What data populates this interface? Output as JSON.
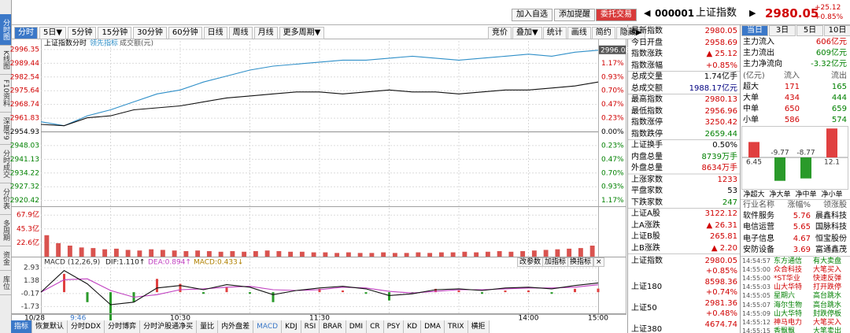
{
  "sidebar": [
    "分时图",
    "K线图",
    "F10资料",
    "深度F9",
    "分时成交",
    "分价表",
    "多周期",
    "资金",
    "库位"
  ],
  "header": {
    "buttons": [
      "加入自选",
      "添加提醒",
      "委托交易"
    ],
    "code": "000001",
    "name": "上证指数",
    "price": "2980.05",
    "change": "+25.12",
    "pct": "+0.85%"
  },
  "toolbar": {
    "periods": [
      "分时",
      "5日▼",
      "5分钟",
      "15分钟",
      "30分钟",
      "60分钟",
      "日线",
      "周线",
      "月线",
      "更多周期▼"
    ],
    "tools": [
      "竞价",
      "叠加▼",
      "统计",
      "画线",
      "简约",
      "隐藏▶"
    ]
  },
  "intraday": {
    "legend": [
      "上证指数",
      "分时",
      "领先指标",
      "成交额(元)"
    ],
    "last_label": "2996.08",
    "date": "10/28",
    "xlim": [
      0,
      240
    ],
    "xticks": [
      {
        "value": 16,
        "label": "9:46"
      },
      {
        "value": 60,
        "label": "10:30"
      },
      {
        "value": 120,
        "label": "11:30"
      },
      {
        "value": 210,
        "label": "14:00"
      },
      {
        "value": 240,
        "label": "15:00"
      }
    ],
    "ylim": [
      2917.5,
      2997.5
    ],
    "yticks": [
      2996.35,
      2989.44,
      2982.54,
      2975.64,
      2968.74,
      2961.83,
      2954.93,
      2948.03,
      2941.13,
      2934.22,
      2927.32,
      2920.42
    ],
    "pct_labels": [
      "1.40%",
      "1.17%",
      "0.93%",
      "0.70%",
      "0.47%",
      "0.23%",
      "0.00%",
      "0.23%",
      "0.47%",
      "0.70%",
      "0.93%",
      "1.17%"
    ],
    "x": [
      0,
      10,
      20,
      30,
      40,
      50,
      60,
      70,
      80,
      90,
      100,
      110,
      120,
      130,
      140,
      150,
      160,
      170,
      180,
      190,
      200,
      210,
      220,
      230,
      240
    ],
    "index_color": "#111111",
    "index_values": [
      2958.7,
      2958,
      2962,
      2963,
      2966,
      2967,
      2968,
      2970,
      2972,
      2973,
      2974,
      2975,
      2975,
      2974,
      2975,
      2976,
      2975,
      2975,
      2974,
      2975,
      2976,
      2976,
      2977,
      2978,
      2980
    ],
    "lead_color": "#2f8fc8",
    "lead_values": [
      2960,
      2958,
      2963,
      2966,
      2970,
      2974,
      2976,
      2980,
      2983,
      2986,
      2988,
      2989,
      2990,
      2991,
      2991,
      2992,
      2993,
      2992,
      2991,
      2992,
      2993,
      2994,
      2993,
      2995,
      2996
    ],
    "volume": {
      "color": "#d9534f",
      "ylim": [
        0,
        72
      ],
      "yticks": [
        {
          "value": 67.9,
          "label": "67.9亿"
        },
        {
          "value": 45.3,
          "label": "45.3亿"
        },
        {
          "value": 22.6,
          "label": "22.6亿"
        }
      ],
      "values": [
        35,
        22,
        18,
        15,
        14,
        12,
        13,
        11,
        10,
        12,
        11,
        10,
        9,
        10,
        9,
        8,
        9,
        8,
        9,
        10,
        9,
        8,
        8,
        7,
        7,
        6,
        7,
        6,
        6,
        7,
        6,
        6,
        7,
        6,
        7,
        7,
        8,
        7,
        8,
        9,
        8,
        9,
        10,
        11,
        12,
        13,
        14,
        18
      ]
    },
    "macd": {
      "title": "MACD (12,26,9)",
      "dif_label": "DIF:1.110↑",
      "dea_label": "DEA:0.894↑",
      "macd_label": "MACD:0.433↓",
      "buttons": [
        "改参数",
        "加指标",
        "换指标",
        "×"
      ],
      "ylim": [
        -2.45,
        3.8
      ],
      "yticks": [
        2.93,
        1.38,
        -0.17,
        -1.73
      ],
      "dif_color": "#111111",
      "dea_color": "#c03fc0",
      "up_color": "#e04040",
      "down_color": "#2a9a2a",
      "dif": [
        0,
        2.6,
        1.0,
        -1.5,
        -1.2,
        0.5,
        0.8,
        0.3,
        0.9,
        0.6,
        -0.3,
        0.2,
        0.5,
        0.7,
        0.4,
        -0.4,
        -0.2,
        0.3,
        0.4,
        0.2,
        0.5,
        0.6,
        0.4,
        0.8,
        1.11
      ],
      "dea": [
        0,
        1.5,
        1.6,
        0.2,
        -0.6,
        -0.3,
        0.3,
        0.4,
        0.6,
        0.7,
        0.3,
        0.2,
        0.3,
        0.6,
        0.5,
        0.1,
        -0.1,
        0.1,
        0.3,
        0.3,
        0.4,
        0.5,
        0.5,
        0.6,
        0.89
      ],
      "hist": [
        0,
        2.2,
        -1.2,
        -3.4,
        -1.2,
        1.6,
        1.0,
        -0.2,
        0.6,
        -0.2,
        -1.2,
        0,
        0.4,
        0.2,
        -0.2,
        -1.0,
        -0.2,
        0.4,
        0.2,
        -0.2,
        0.2,
        0.2,
        -0.2,
        0.4,
        0.43
      ]
    }
  },
  "bottom_tabs": [
    "指标",
    "恢复默认",
    "分时DDX",
    "分时博弈",
    "分时沪股通净买",
    "量比",
    "内外盘差",
    "MACD",
    "KDJ",
    "RSI",
    "BRAR",
    "DMI",
    "CR",
    "PSY",
    "KD",
    "DMA",
    "TRIX",
    "横拒"
  ],
  "quote": [
    [
      {
        "label": "最新指数",
        "value": "2980.05",
        "color": "#d00000"
      },
      {
        "label": "今日开盘",
        "value": "2958.69",
        "color": "#d00000"
      },
      {
        "label": "指数涨跌",
        "value": "▲ 25.12",
        "color": "#d00000"
      },
      {
        "label": "指数涨幅",
        "value": "+0.85%",
        "color": "#d00000"
      }
    ],
    [
      {
        "label": "总成交量",
        "value": "1.74亿手",
        "color": "#000000"
      },
      {
        "label": "总成交额",
        "value": "1988.17亿元",
        "color": "#000080"
      }
    ],
    [
      {
        "label": "最高指数",
        "value": "2980.13",
        "color": "#d00000"
      },
      {
        "label": "最低指数",
        "value": "2956.96",
        "color": "#d00000"
      },
      {
        "label": "指数涨停",
        "value": "3250.42",
        "color": "#d00000"
      },
      {
        "label": "指数跌停",
        "value": "2659.44",
        "color": "#008000"
      }
    ],
    [
      {
        "label": "上证换手",
        "value": "0.50%",
        "color": "#000000"
      },
      {
        "label": "内盘总量",
        "value": "8739万手",
        "color": "#008000"
      },
      {
        "label": "外盘总量",
        "value": "8634万手",
        "color": "#d00000"
      }
    ],
    [
      {
        "label": "上涨家数",
        "value": "1233",
        "color": "#d00000"
      },
      {
        "label": "平盘家数",
        "value": "53",
        "color": "#000000"
      },
      {
        "label": "下跌家数",
        "value": "247",
        "color": "#008000"
      }
    ],
    [
      {
        "label": "上证A股",
        "value": "3122.12",
        "color": "#d00000"
      },
      {
        "label": "上A涨跌",
        "value": "▲ 26.31",
        "color": "#d00000"
      },
      {
        "label": "上证B股",
        "value": "265.81",
        "color": "#d00000"
      },
      {
        "label": "上B涨跌",
        "value": "▲ 2.20",
        "color": "#d00000"
      }
    ]
  ],
  "indices": [
    {
      "name": "上证指数",
      "value": "2980.05",
      "pct": "+0.85%"
    },
    {
      "name": "上证180",
      "value": "8598.36",
      "pct": "+0.74%"
    },
    {
      "name": "上证50",
      "value": "2981.36",
      "pct": "+0.48%"
    },
    {
      "name": "上证380",
      "value": "4674.74"
    }
  ],
  "flow": {
    "tabs": [
      "当日",
      "3日",
      "5日",
      "10日"
    ],
    "summary": [
      {
        "label": "主力流入",
        "value": "606亿元",
        "color": "#d00000"
      },
      {
        "label": "主力流出",
        "value": "609亿元",
        "color": "#008000"
      },
      {
        "label": "主力净流向",
        "value": "-3.32亿元",
        "color": "#008000"
      }
    ],
    "header": [
      "(亿元)",
      "流入",
      "流出"
    ],
    "rows": [
      [
        "超大",
        "171",
        "165"
      ],
      [
        "大单",
        "434",
        "444"
      ],
      [
        "中单",
        "650",
        "659"
      ],
      [
        "小单",
        "586",
        "574"
      ]
    ],
    "chart": {
      "type": "bar",
      "categories": [
        "净超大",
        "净大单",
        "净中单",
        "净小单"
      ],
      "values": [
        6.45,
        -9.77,
        -8.77,
        12.1
      ],
      "ylim": [
        -12.5,
        12.5
      ],
      "up_color": "#e04040",
      "down_color": "#2a9a2a"
    }
  },
  "industry": {
    "header": [
      "行业名称",
      "涨幅%",
      "领涨股"
    ],
    "rows": [
      [
        "软件服务",
        "5.76",
        "晨鑫科技"
      ],
      [
        "电信运营",
        "5.65",
        "国脉科技"
      ],
      [
        "电子信息",
        "4.67",
        "恒宝股份"
      ],
      [
        "安防设备",
        "3.69",
        "富通鑫茂"
      ]
    ]
  },
  "ticks": [
    {
      "time": "14:54:57",
      "name": "东方通信",
      "event": "有大卖盘",
      "color": "#008000"
    },
    {
      "time": "14:55:00",
      "name": "众合科技",
      "event": "大笔买入",
      "color": "#d00000"
    },
    {
      "time": "14:55:00",
      "name": "*ST华业",
      "event": "快速反弹",
      "color": "#d00000"
    },
    {
      "time": "14:55:03",
      "name": "山大华特",
      "event": "打开跌停",
      "color": "#d00000"
    },
    {
      "time": "14:55:05",
      "name": "星期六",
      "event": "高台跳水",
      "color": "#008000"
    },
    {
      "time": "14:55:07",
      "name": "海尔生物",
      "event": "高台跳水",
      "color": "#008000"
    },
    {
      "time": "14:55:09",
      "name": "山大华特",
      "event": "封跌停板",
      "color": "#008000"
    },
    {
      "time": "14:55:12",
      "name": "神马电力",
      "event": "大笔买入",
      "color": "#d00000"
    },
    {
      "time": "14:55:15",
      "name": "香飘飘",
      "event": "大笔卖出",
      "color": "#008000"
    }
  ]
}
